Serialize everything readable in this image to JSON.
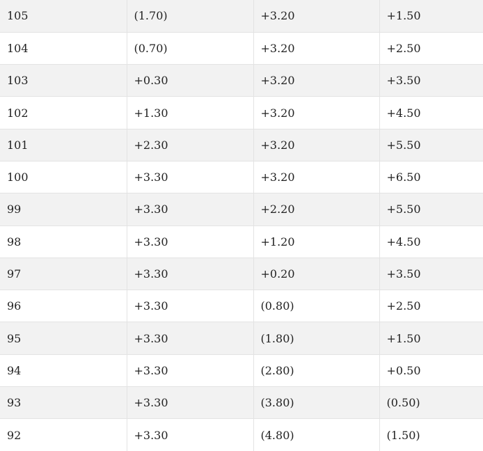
{
  "table": {
    "rows": [
      [
        "105",
        "(1.70)",
        "+3.20",
        "+1.50"
      ],
      [
        "104",
        "(0.70)",
        "+3.20",
        "+2.50"
      ],
      [
        "103",
        "+0.30",
        "+3.20",
        "+3.50"
      ],
      [
        "102",
        "+1.30",
        "+3.20",
        "+4.50"
      ],
      [
        "101",
        "+2.30",
        "+3.20",
        "+5.50"
      ],
      [
        "100",
        "+3.30",
        "+3.20",
        "+6.50"
      ],
      [
        "99",
        "+3.30",
        "+2.20",
        "+5.50"
      ],
      [
        "98",
        "+3.30",
        "+1.20",
        "+4.50"
      ],
      [
        "97",
        "+3.30",
        "+0.20",
        "+3.50"
      ],
      [
        "96",
        "+3.30",
        "(0.80)",
        "+2.50"
      ],
      [
        "95",
        "+3.30",
        "(1.80)",
        "+1.50"
      ],
      [
        "94",
        "+3.30",
        "(2.80)",
        "+0.50"
      ],
      [
        "93",
        "+3.30",
        "(3.80)",
        "(0.50)"
      ],
      [
        "92",
        "+3.30",
        "(4.80)",
        "(1.50)"
      ]
    ]
  }
}
